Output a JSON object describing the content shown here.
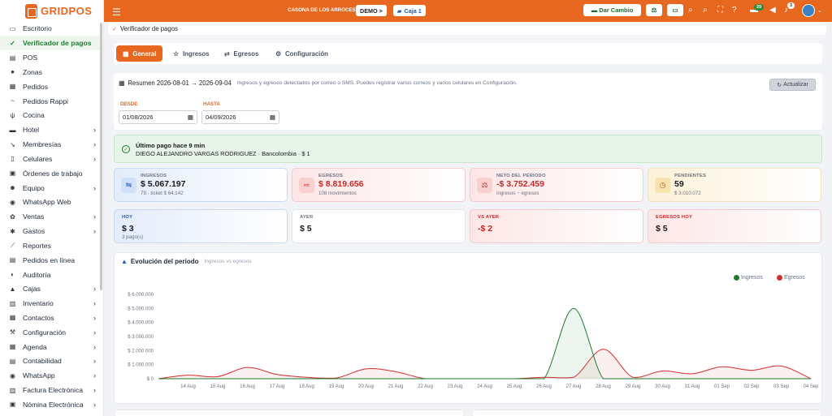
{
  "app": {
    "brand": "GRIDPOS"
  },
  "sidebar": {
    "items": [
      {
        "label": "Escritorio",
        "icon": "desktop-icon",
        "glyph": "▭",
        "chevron": false
      },
      {
        "label": "Verificador de pagos",
        "icon": "shield-check-icon",
        "glyph": "✓",
        "chevron": false,
        "active": true
      },
      {
        "label": "POS",
        "icon": "pos-icon",
        "glyph": "▤",
        "chevron": false
      },
      {
        "label": "Zonas",
        "icon": "pin-icon",
        "glyph": "●",
        "chevron": false
      },
      {
        "label": "Pedidos",
        "icon": "receipt-icon",
        "glyph": "▦",
        "chevron": false
      },
      {
        "label": "Pedidos Rappi",
        "icon": "rappi-icon",
        "glyph": "~",
        "chevron": false
      },
      {
        "label": "Cocina",
        "icon": "utensils-icon",
        "glyph": "ψ",
        "chevron": false
      },
      {
        "label": "Hotel",
        "icon": "bed-icon",
        "glyph": "▬",
        "chevron": true
      },
      {
        "label": "Membresías",
        "icon": "membership-icon",
        "glyph": "↘",
        "chevron": true
      },
      {
        "label": "Celulares",
        "icon": "phone-icon",
        "glyph": "▯",
        "chevron": true
      },
      {
        "label": "Órdenes de trabajo",
        "icon": "clipboard-icon",
        "glyph": "▣",
        "chevron": false
      },
      {
        "label": "Equipo",
        "icon": "team-icon",
        "glyph": "☻",
        "chevron": true
      },
      {
        "label": "WhatsApp Web",
        "icon": "whatsapp-icon",
        "glyph": "◉",
        "chevron": false
      },
      {
        "label": "Ventas",
        "icon": "sales-icon",
        "glyph": "✿",
        "chevron": true
      },
      {
        "label": "Gastos",
        "icon": "expenses-icon",
        "glyph": "✱",
        "chevron": true
      },
      {
        "label": "Reportes",
        "icon": "chart-icon",
        "glyph": "⟋",
        "chevron": false
      },
      {
        "label": "Pedidos en línea",
        "icon": "online-orders-icon",
        "glyph": "▤",
        "chevron": false
      },
      {
        "label": "Auditoría",
        "icon": "audit-icon",
        "glyph": "◐",
        "chevron": false
      },
      {
        "label": "Cajas",
        "icon": "cashbox-icon",
        "glyph": "▲",
        "chevron": true
      },
      {
        "label": "Inventario",
        "icon": "inventory-icon",
        "glyph": "▥",
        "chevron": true
      },
      {
        "label": "Contactos",
        "icon": "contacts-icon",
        "glyph": "▦",
        "chevron": true
      },
      {
        "label": "Configuración",
        "icon": "wrench-icon",
        "glyph": "⚒",
        "chevron": true
      },
      {
        "label": "Agenda",
        "icon": "calendar-icon",
        "glyph": "▦",
        "chevron": true
      },
      {
        "label": "Contabilidad",
        "icon": "accounting-icon",
        "glyph": "▤",
        "chevron": true
      },
      {
        "label": "WhatsApp",
        "icon": "whatsapp-icon",
        "glyph": "◉",
        "chevron": true
      },
      {
        "label": "Factura Electrónica",
        "icon": "invoice-icon",
        "glyph": "▥",
        "chevron": true
      },
      {
        "label": "Nómina Electrónica",
        "icon": "payroll-icon",
        "glyph": "▣",
        "chevron": true
      }
    ]
  },
  "topbar": {
    "store": "CASONA DE LOS ARROCES",
    "demo": "DEMO >",
    "caja": "Caja 1",
    "dar_cambio": "Dar Cambio",
    "badge_updates": "29",
    "badge_notifications": "3"
  },
  "breadcrumb": {
    "label": "Verificador de pagos"
  },
  "tabs": [
    {
      "label": "General",
      "icon": "grid-icon",
      "glyph": "▦",
      "active": true
    },
    {
      "label": "Ingresos",
      "icon": "star-icon",
      "glyph": "☆"
    },
    {
      "label": "Egresos",
      "icon": "egresos-icon",
      "glyph": "⇄"
    },
    {
      "label": "Configuración",
      "icon": "gear-icon",
      "glyph": "⚙"
    }
  ],
  "summary": {
    "title": "Resumen 2026-08-01 → 2026-09-04",
    "subtitle": "Ingresos y egresos detectados por correo o SMS. Puedes registrar varios correos y varios celulares en Configuración.",
    "refresh": "Actualizar",
    "desde_label": "DESDE",
    "desde_value": "01/08/2026",
    "hasta_label": "HASTA",
    "hasta_value": "04/09/2026"
  },
  "alert": {
    "title": "Último pago hace 9 min",
    "detail": "DIEGO ALEJANDRO VARGAS RODRIGUEZ · Bancolombia · $ 1"
  },
  "cards_row1": [
    {
      "label": "INGRESOS",
      "value": "$ 5.067.197",
      "sub": "79 · ticket $ 64.142",
      "icon": "wallet-icon",
      "glyph": "⇋",
      "theme": "blue",
      "value_color": "#1a1a1a"
    },
    {
      "label": "EGRESOS",
      "value": "$ 8.819.656",
      "sub": "108 movimientos",
      "icon": "card-out-icon",
      "glyph": "⇨",
      "theme": "red",
      "value_color": "#c62828"
    },
    {
      "label": "NETO DEL PERIODO",
      "value": "-$ 3.752.459",
      "sub": "ingresos − egresos",
      "icon": "balance-icon",
      "glyph": "⚖",
      "theme": "red",
      "value_color": "#c62828"
    },
    {
      "label": "PENDIENTES",
      "value": "59",
      "sub": "$ 3.010.072",
      "icon": "clock-icon",
      "glyph": "◷",
      "theme": "yellow",
      "value_color": "#1a1a1a"
    }
  ],
  "cards_row2": [
    {
      "label": "HOY",
      "value": "$ 3",
      "sub": "3 pago(s)",
      "theme": "blue",
      "label_color": "#1e5ab5",
      "value_color": "#1a1a1a"
    },
    {
      "label": "AYER",
      "value": "$ 5",
      "sub": "",
      "theme": "white",
      "label_color": "#6b7280",
      "value_color": "#1a1a1a"
    },
    {
      "label": "VS AYER",
      "value": "-$ 2",
      "sub": "",
      "theme": "red",
      "label_color": "#c62828",
      "value_color": "#c62828"
    },
    {
      "label": "EGRESOS HOY",
      "value": "$ 5",
      "sub": "",
      "theme": "red",
      "label_color": "#c62828",
      "value_color": "#1a1a1a"
    }
  ],
  "colors": {
    "accent": "#e8671e",
    "ingresos": "#1d7a2e",
    "egresos": "#d32f2f"
  },
  "chart_data": {
    "type": "area",
    "title": "Evolución del periodo",
    "subtitle": "Ingresos vs egresos",
    "legend_position": "top-right",
    "ylim": [
      0,
      6000000
    ],
    "y_ticks": [
      "$ 0",
      "$ 1.000.000",
      "$ 2.000.000",
      "$ 3.000.000",
      "$ 4.000.000",
      "$ 5.000.000",
      "$ 6.000.000"
    ],
    "x_ticks": [
      "14 Aug",
      "15 Aug",
      "16 Aug",
      "17 Aug",
      "18 Aug",
      "19 Aug",
      "20 Aug",
      "21 Aug",
      "22 Aug",
      "23 Aug",
      "24 Aug",
      "25 Aug",
      "26 Aug",
      "27 Aug",
      "28 Aug",
      "29 Aug",
      "30 Aug",
      "31 Aug",
      "01 Sep",
      "02 Sep",
      "03 Sep",
      "04 Sep"
    ],
    "x_start": "13 Aug",
    "series": [
      {
        "name": "Ingresos",
        "color": "#1d7a2e",
        "values": [
          0,
          0,
          0,
          0,
          0,
          0,
          0,
          0,
          0,
          0,
          0,
          0,
          0,
          0,
          5000000,
          0,
          0,
          0,
          0,
          0,
          0,
          0,
          0
        ]
      },
      {
        "name": "Egresos",
        "color": "#d32f2f",
        "values": [
          0,
          250000,
          150000,
          800000,
          300000,
          100000,
          50000,
          700000,
          500000,
          0,
          0,
          0,
          0,
          100000,
          100000,
          2100000,
          100000,
          550000,
          350000,
          850000,
          600000,
          900000,
          0
        ]
      }
    ]
  }
}
